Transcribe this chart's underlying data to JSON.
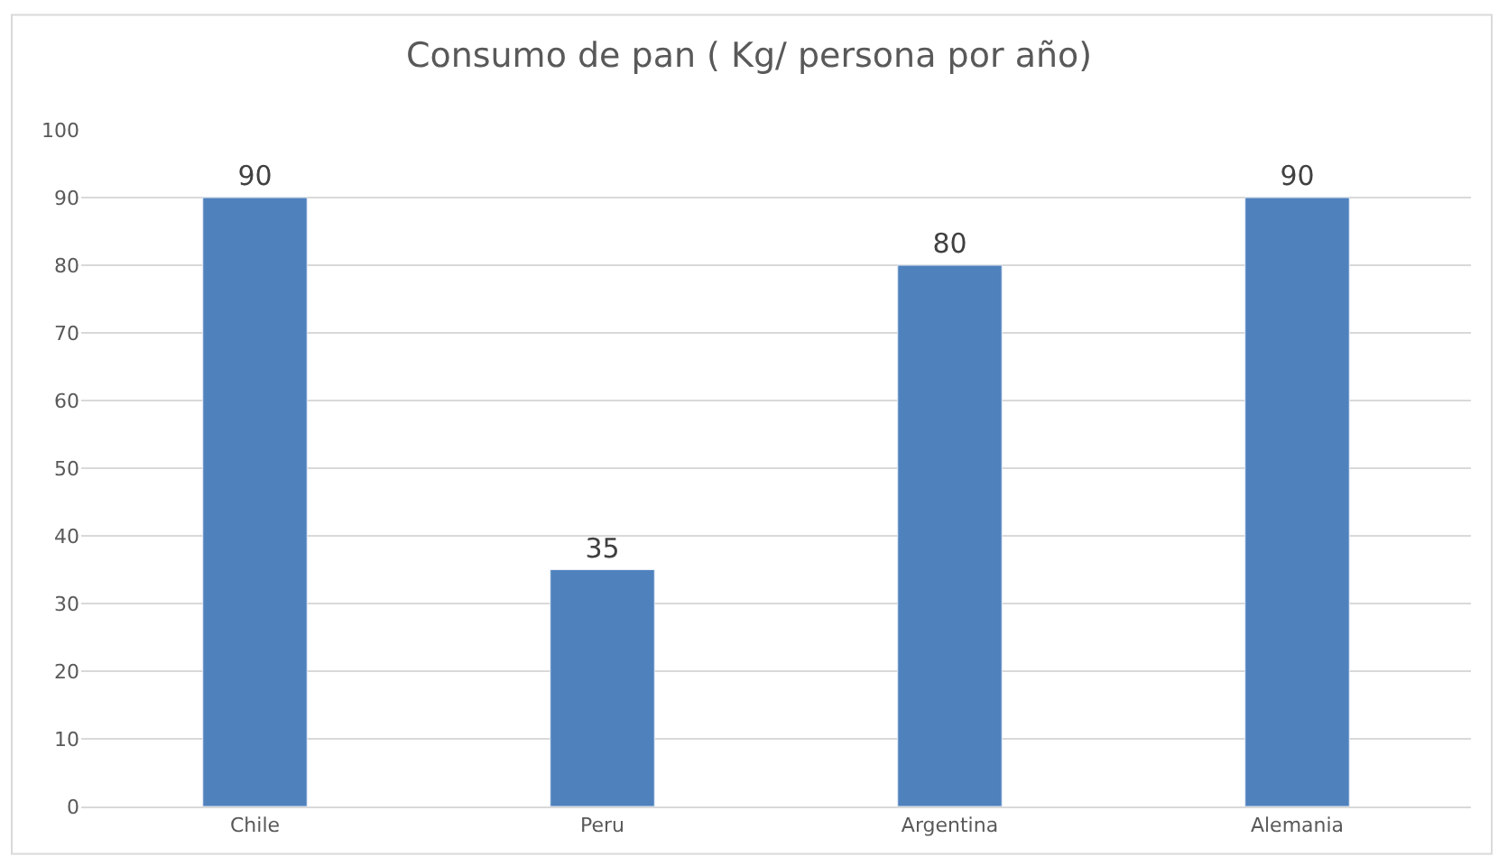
{
  "chart_data": {
    "type": "bar",
    "title": "Consumo de pan ( Kg/ persona por año)",
    "categories": [
      "Chile",
      "Peru",
      "Argentina",
      "Alemania"
    ],
    "values": [
      90,
      35,
      80,
      90
    ],
    "color": "#4f81bd",
    "ylim": [
      0,
      100
    ],
    "yticks": [
      0,
      10,
      20,
      30,
      40,
      50,
      60,
      70,
      80,
      90,
      100
    ],
    "grid": "y",
    "data_labels": true,
    "legend": false
  }
}
